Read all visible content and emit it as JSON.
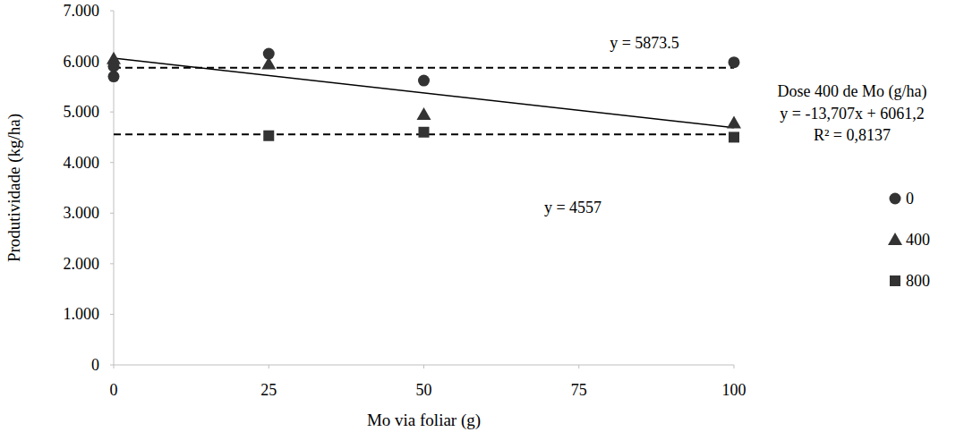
{
  "chart_data": {
    "type": "scatter",
    "x_label": "Mo via foliar (g)",
    "y_label": "Produtividade (kg/ha)",
    "xlim": [
      0,
      100
    ],
    "xticks": [
      0,
      25,
      50,
      75,
      100
    ],
    "ylim": [
      0,
      7000
    ],
    "yticks": [
      0,
      {
        "value": 1000,
        "label": "1.000"
      },
      {
        "value": 2000,
        "label": "2.000"
      },
      {
        "value": 3000,
        "label": "3.000"
      },
      {
        "value": 4000,
        "label": "4.000"
      },
      {
        "value": 5000,
        "label": "5.000"
      },
      {
        "value": 6000,
        "label": "6.000"
      },
      {
        "value": 7000,
        "label": "7.000"
      }
    ],
    "grid": false,
    "legend": "right",
    "series": [
      {
        "name": "0",
        "type": "scatter",
        "marker": "circle",
        "color": "#333333",
        "x": [
          0,
          0,
          25,
          50,
          100
        ],
        "values": [
          5700,
          5900,
          6150,
          5620,
          5980
        ]
      },
      {
        "name": "400",
        "type": "scatter",
        "marker": "triangle",
        "color": "#333333",
        "x": [
          0,
          25,
          50,
          100
        ],
        "values": [
          6050,
          5950,
          4950,
          4780
        ]
      },
      {
        "name": "800",
        "type": "scatter",
        "marker": "square",
        "color": "#333333",
        "x": [
          25,
          50,
          100
        ],
        "values": [
          4530,
          4600,
          4500
        ]
      },
      {
        "type": "line",
        "line_style": "dashed",
        "color": "#000000",
        "x": [
          0,
          100
        ],
        "values": [
          5873.5,
          5873.5
        ]
      },
      {
        "type": "line",
        "line_style": "solid",
        "color": "#000000",
        "x": [
          0,
          100
        ],
        "values": [
          6061.2,
          4690.5
        ]
      },
      {
        "type": "line",
        "line_style": "dashed",
        "color": "#000000",
        "x": [
          0,
          100
        ],
        "values": [
          4557,
          4557
        ]
      }
    ],
    "annotations": [
      "y = 5873.5",
      "Dose 400 de Mo (g/ha)",
      "y = -13,707x + 6061,2",
      "R² = 0,8137",
      "y = 4557"
    ]
  }
}
